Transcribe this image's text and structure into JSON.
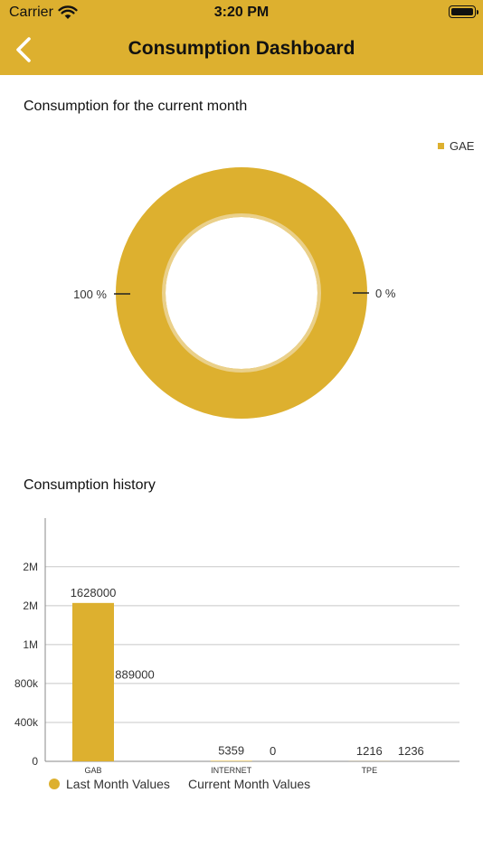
{
  "status_bar": {
    "carrier": "Carrier",
    "time": "3:20 PM"
  },
  "header": {
    "title": "Consumption Dashboard",
    "back_icon": "chevron-left-icon"
  },
  "colors": {
    "accent": "#DDB02F",
    "accent_light": "#EAD08A",
    "grid": "#c8c8c8",
    "axis": "#888888"
  },
  "current_month": {
    "title": "Consumption for the current month"
  },
  "history": {
    "title": "Consumption history"
  },
  "chart_data": [
    {
      "type": "pie",
      "title": "",
      "legend": [
        "GAE"
      ],
      "legend_position": "top-right",
      "slices": [
        {
          "label": "GAE",
          "value": 100,
          "display": "100  %"
        },
        {
          "label": "",
          "value": 0,
          "display": "0  %"
        }
      ]
    },
    {
      "type": "bar",
      "categories": [
        "GAB",
        "INTERNET",
        "TPE"
      ],
      "series": [
        {
          "name": "Last Month Values",
          "values": [
            1628000,
            5359,
            1216
          ],
          "labels": [
            "1628000",
            "5359",
            "1216"
          ]
        },
        {
          "name": "Current Month Values",
          "values": [
            889000,
            0,
            1236
          ],
          "labels": [
            "889000",
            "0",
            "1236"
          ]
        }
      ],
      "ylim": [
        0,
        2500000
      ],
      "yticks": [
        0,
        400000,
        800000,
        1200000,
        1600000,
        2000000
      ],
      "ytick_labels": [
        "0",
        "400k",
        "800k",
        "1M",
        "2M",
        "2M"
      ],
      "grid": true,
      "legend_position": "bottom-left"
    }
  ]
}
